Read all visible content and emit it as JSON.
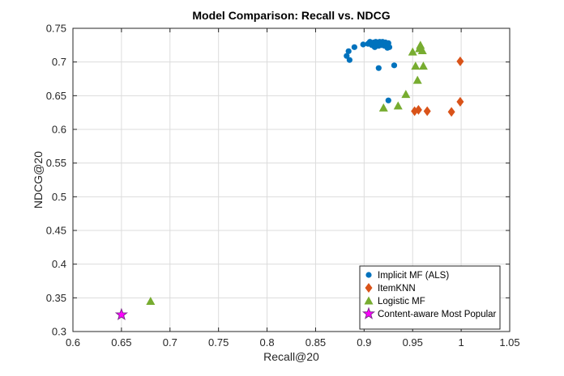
{
  "chart_data": {
    "type": "scatter",
    "title": "Model Comparison: Recall vs. NDCG",
    "xlabel": "Recall@20",
    "ylabel": "NDCG@20",
    "xlim": [
      0.6,
      1.05
    ],
    "ylim": [
      0.3,
      0.75
    ],
    "xticks": [
      "0.6",
      "0.65",
      "0.7",
      "0.75",
      "0.8",
      "0.85",
      "0.9",
      "0.95",
      "1",
      "1.05"
    ],
    "yticks": [
      "0.3",
      "0.35",
      "0.4",
      "0.45",
      "0.5",
      "0.55",
      "0.6",
      "0.65",
      "0.7",
      "0.75"
    ],
    "grid": true,
    "legend_position": "bottom-right",
    "series": [
      {
        "name": "Implicit MF (ALS)",
        "marker": "circle",
        "color": "#0072BD",
        "points": [
          [
            0.882,
            0.709
          ],
          [
            0.884,
            0.716
          ],
          [
            0.885,
            0.703
          ],
          [
            0.89,
            0.722
          ],
          [
            0.899,
            0.726
          ],
          [
            0.904,
            0.727
          ],
          [
            0.906,
            0.73
          ],
          [
            0.908,
            0.725
          ],
          [
            0.91,
            0.729
          ],
          [
            0.911,
            0.722
          ],
          [
            0.912,
            0.73
          ],
          [
            0.913,
            0.726
          ],
          [
            0.914,
            0.729
          ],
          [
            0.915,
            0.724
          ],
          [
            0.916,
            0.73
          ],
          [
            0.917,
            0.727
          ],
          [
            0.918,
            0.725
          ],
          [
            0.919,
            0.73
          ],
          [
            0.92,
            0.727
          ],
          [
            0.921,
            0.724
          ],
          [
            0.922,
            0.729
          ],
          [
            0.923,
            0.726
          ],
          [
            0.924,
            0.721
          ],
          [
            0.925,
            0.728
          ],
          [
            0.926,
            0.722
          ],
          [
            0.915,
            0.691
          ],
          [
            0.931,
            0.695
          ],
          [
            0.925,
            0.643
          ]
        ]
      },
      {
        "name": "ItemKNN",
        "marker": "diamond",
        "color": "#D95319",
        "points": [
          [
            0.999,
            0.701
          ],
          [
            0.999,
            0.641
          ],
          [
            0.99,
            0.626
          ],
          [
            0.965,
            0.627
          ],
          [
            0.956,
            0.629
          ],
          [
            0.952,
            0.627
          ]
        ]
      },
      {
        "name": "Logistic MF",
        "marker": "triangle",
        "color": "#77AC30",
        "points": [
          [
            0.958,
            0.725
          ],
          [
            0.957,
            0.72
          ],
          [
            0.96,
            0.717
          ],
          [
            0.95,
            0.715
          ],
          [
            0.953,
            0.694
          ],
          [
            0.961,
            0.694
          ],
          [
            0.955,
            0.673
          ],
          [
            0.943,
            0.652
          ],
          [
            0.935,
            0.635
          ],
          [
            0.92,
            0.632
          ],
          [
            0.68,
            0.345
          ]
        ]
      },
      {
        "name": "Content-aware Most Popular",
        "marker": "star",
        "color": "#7E2F8E",
        "fill": "#FF00FF",
        "points": [
          [
            0.65,
            0.325
          ]
        ]
      }
    ]
  }
}
